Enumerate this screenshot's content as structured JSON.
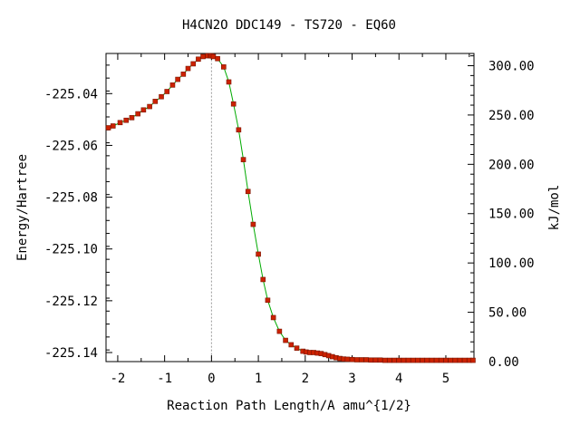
{
  "chart_data": {
    "type": "scatter",
    "title": "H4CN2O   DDC149 - TS720 - EQ60",
    "xlabel": "Reaction Path Length/A amu^{1/2}",
    "ylabel": "Energy/Hartree",
    "y2label": "kJ/mol",
    "xlim": [
      -2.25,
      5.6
    ],
    "ylim": [
      -225.1435,
      -225.0245
    ],
    "y2lim": [
      0,
      312.4
    ],
    "x_ticks": [
      -2,
      -1,
      0,
      1,
      2,
      3,
      4,
      5
    ],
    "x_tick_labels": [
      "-2",
      "-1",
      "0",
      "1",
      "2",
      "3",
      "4",
      "5"
    ],
    "y_ticks": [
      -225.04,
      -225.06,
      -225.08,
      -225.1,
      -225.12,
      -225.14
    ],
    "y_tick_labels": [
      "-225.04",
      "-225.06",
      "-225.08",
      "-225.10",
      "-225.12",
      "-225.14"
    ],
    "y2_ticks": [
      300,
      250,
      200,
      150,
      100,
      50,
      0
    ],
    "y2_tick_labels": [
      "300.00",
      "250.00",
      "200.00",
      "150.00",
      "100.00",
      "50.00",
      "0.00"
    ],
    "ts_marker_x": 0,
    "grid": false,
    "marker_color": "#cc2200",
    "line_color": "#00aa00",
    "dash_color": "#999999",
    "series": [
      {
        "x": [
          -2.2,
          -2.1,
          -1.95,
          -1.82,
          -1.7,
          -1.57,
          -1.45,
          -1.32,
          -1.2,
          -1.07,
          -0.95,
          -0.83,
          -0.72,
          -0.6,
          -0.5,
          -0.39,
          -0.28,
          -0.18,
          -0.08,
          -0.02,
          0.0,
          0.04,
          0.13,
          0.26,
          0.37,
          0.47,
          0.58,
          0.68,
          0.78,
          0.89,
          1.0,
          1.1,
          1.2,
          1.32,
          1.45,
          1.58,
          1.7,
          1.82,
          1.95,
          2.02,
          2.1,
          2.18,
          2.26,
          2.34,
          2.42,
          2.5,
          2.58,
          2.66,
          2.74,
          2.82,
          2.9,
          3.0,
          3.1,
          3.2,
          3.3,
          3.4,
          3.5,
          3.6,
          3.7,
          3.8,
          3.9,
          4.0,
          4.1,
          4.2,
          4.3,
          4.4,
          4.5,
          4.6,
          4.7,
          4.8,
          4.9,
          5.0,
          5.1,
          5.2,
          5.3,
          5.4,
          5.5,
          5.58
        ],
        "y": [
          -225.0532,
          -225.0525,
          -225.0512,
          -225.0503,
          -225.0493,
          -225.0478,
          -225.0463,
          -225.045,
          -225.043,
          -225.0412,
          -225.0392,
          -225.0367,
          -225.0345,
          -225.0325,
          -225.0303,
          -225.0285,
          -225.0267,
          -225.0257,
          -225.0254,
          -225.0254,
          -225.0254,
          -225.0257,
          -225.0265,
          -225.0297,
          -225.0355,
          -225.044,
          -225.054,
          -225.0655,
          -225.0778,
          -225.0905,
          -225.102,
          -225.1118,
          -225.1198,
          -225.1265,
          -225.1318,
          -225.1353,
          -225.137,
          -225.1383,
          -225.1395,
          -225.1398,
          -225.14,
          -225.14,
          -225.1402,
          -225.1404,
          -225.1408,
          -225.1412,
          -225.1416,
          -225.142,
          -225.1423,
          -225.1425,
          -225.1426,
          -225.1427,
          -225.1428,
          -225.1428,
          -225.1428,
          -225.1429,
          -225.1429,
          -225.1429,
          -225.143,
          -225.143,
          -225.143,
          -225.143,
          -225.143,
          -225.143,
          -225.143,
          -225.143,
          -225.143,
          -225.143,
          -225.143,
          -225.143,
          -225.143,
          -225.143,
          -225.143,
          -225.143,
          -225.143,
          -225.143,
          -225.143,
          -225.143
        ]
      }
    ]
  }
}
